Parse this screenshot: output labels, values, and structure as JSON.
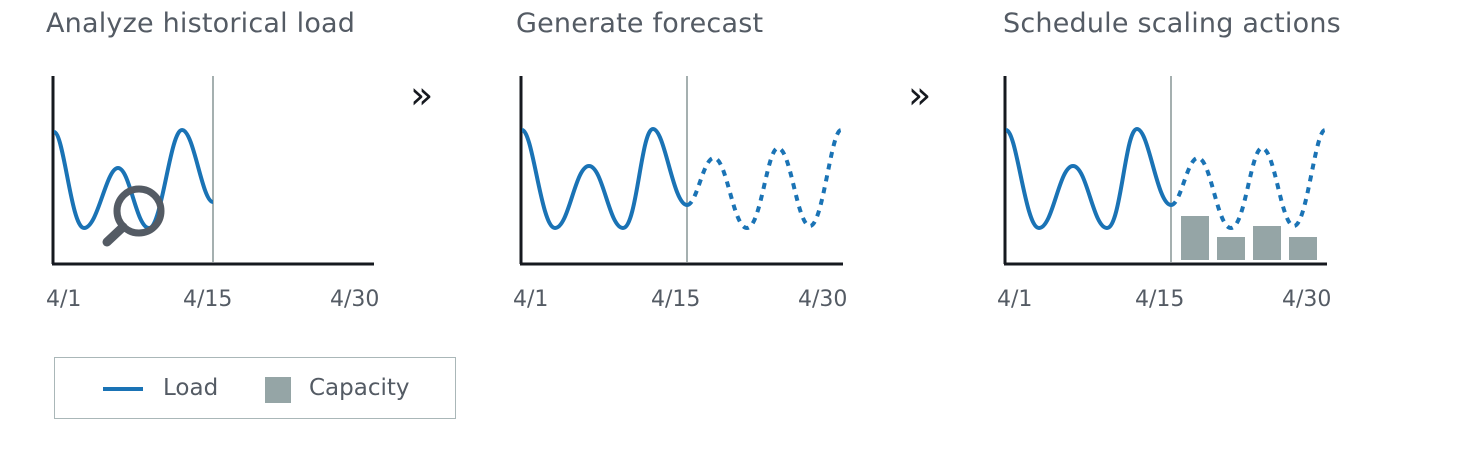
{
  "colors": {
    "load": "#1a73b5",
    "capacity": "#95a5a6",
    "axis": "#16191f",
    "divider": "#879596",
    "text": "#545b64"
  },
  "panels": [
    {
      "title": "Analyze historical load",
      "x_ticks": [
        "4/1",
        "4/15",
        "4/30"
      ],
      "icon": "magnifier-icon"
    },
    {
      "title": "Generate forecast",
      "x_ticks": [
        "4/1",
        "4/15",
        "4/30"
      ]
    },
    {
      "title": "Schedule scaling actions",
      "x_ticks": [
        "4/1",
        "4/15",
        "4/30"
      ]
    }
  ],
  "arrows": [
    "»",
    "»"
  ],
  "legend": {
    "load_label": "Load",
    "capacity_label": "Capacity"
  }
}
